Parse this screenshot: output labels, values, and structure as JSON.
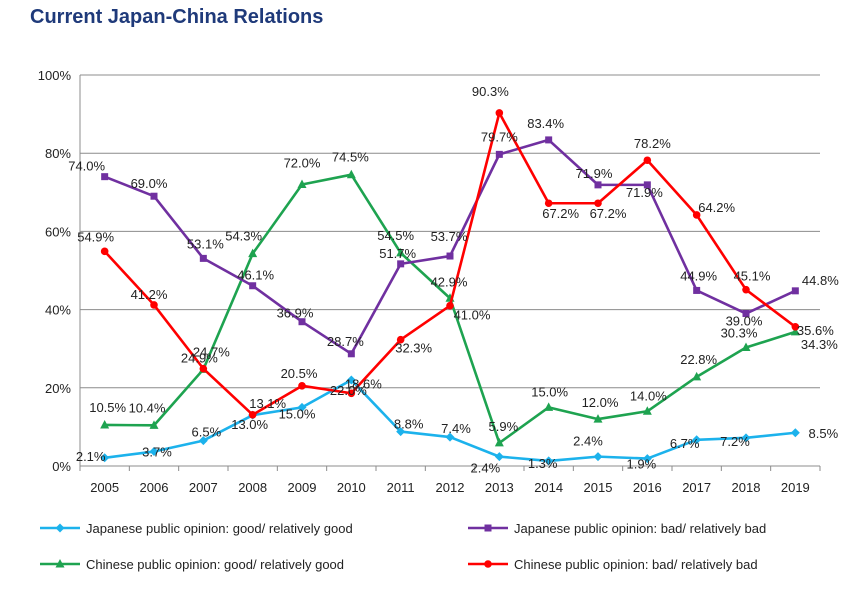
{
  "title": "Current Japan-China Relations",
  "chart_data": {
    "type": "line",
    "title": "Current Japan-China Relations",
    "xlabel": "",
    "ylabel": "",
    "categories": [
      "2005",
      "2006",
      "2007",
      "2008",
      "2009",
      "2010",
      "2011",
      "2012",
      "2013",
      "2014",
      "2015",
      "2016",
      "2017",
      "2018",
      "2019"
    ],
    "ylim": [
      0,
      100
    ],
    "yticks": [
      0,
      20,
      40,
      60,
      80,
      100
    ],
    "ytick_labels": [
      "0%",
      "20%",
      "40%",
      "60%",
      "80%",
      "100%"
    ],
    "grid": true,
    "legend_position": "bottom",
    "series": [
      {
        "name": "Japanese public opinion: good/ relatively good",
        "color": "#1CB2EC",
        "marker": "diamond",
        "values": [
          2.1,
          3.7,
          6.5,
          13.0,
          15.0,
          22.0,
          8.8,
          7.4,
          2.4,
          1.3,
          2.4,
          1.9,
          6.7,
          7.2,
          8.5
        ],
        "labels": [
          "2.1%",
          "3.7%",
          "6.5%",
          "13.0%",
          "15.0%",
          "22.0%",
          "8.8%",
          "7.4%",
          "2.4%",
          "1.3%",
          "2.4%",
          "1.9%",
          "6.7%",
          "7.2%",
          "8.5%"
        ]
      },
      {
        "name": "Japanese public opinion: bad/ relatively bad",
        "color": "#7030A0",
        "marker": "square",
        "values": [
          74.0,
          69.0,
          53.1,
          46.1,
          36.9,
          28.7,
          51.7,
          53.7,
          79.7,
          83.4,
          71.9,
          71.9,
          44.9,
          39.0,
          44.8
        ],
        "labels": [
          "74.0%",
          "69.0%",
          "53.1%",
          "46.1%",
          "36.9%",
          "28.7%",
          "51.7%",
          "53.7%",
          "79.7%",
          "83.4%",
          "71.9%",
          "71.9%",
          "44.9%",
          "39.0%",
          "44.8%"
        ]
      },
      {
        "name": "Chinese public opinion: good/ relatively good",
        "color": "#1EA350",
        "marker": "triangle",
        "values": [
          10.5,
          10.4,
          24.7,
          54.3,
          72.0,
          74.5,
          54.5,
          42.9,
          5.9,
          15.0,
          12.0,
          14.0,
          22.8,
          30.3,
          34.3
        ],
        "labels": [
          "10.5%",
          "10.4%",
          "24.7%",
          "54.3%",
          "72.0%",
          "74.5%",
          "54.5%",
          "42.9%",
          "5.9%",
          "15.0%",
          "12.0%",
          "14.0%",
          "22.8%",
          "30.3%",
          "34.3%"
        ]
      },
      {
        "name": "Chinese public opinion: bad/ relatively bad",
        "color": "#FF0000",
        "marker": "circle",
        "values": [
          54.9,
          41.2,
          24.9,
          13.1,
          20.5,
          18.6,
          32.3,
          41.0,
          90.3,
          67.2,
          67.2,
          78.2,
          64.2,
          45.1,
          35.6
        ],
        "labels": [
          "54.9%",
          "41.2%",
          "24.9%",
          "13.1%",
          "20.5%",
          "18.6%",
          "32.3%",
          "41.0%",
          "90.3%",
          "67.2%",
          "67.2%",
          "78.2%",
          "64.2%",
          "45.1%",
          "35.6%"
        ]
      }
    ]
  }
}
